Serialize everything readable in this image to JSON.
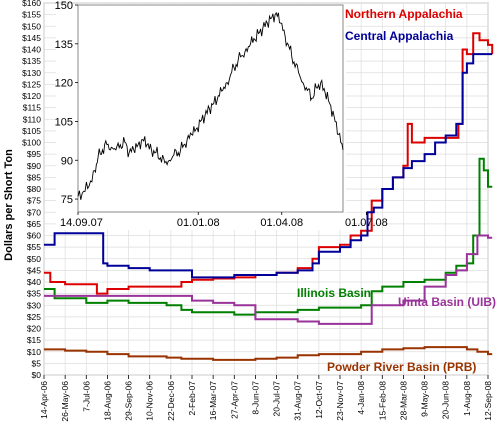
{
  "chart_data": [
    {
      "type": "line",
      "title": "",
      "xlabel": "",
      "ylabel": "Dollars per Short Ton",
      "ylim": [
        0,
        160
      ],
      "yticks": [
        "$0",
        "$5",
        "$10",
        "$15",
        "$20",
        "$25",
        "$30",
        "$35",
        "$40",
        "$45",
        "$50",
        "$55",
        "$60",
        "$65",
        "$70",
        "$75",
        "$80",
        "$85",
        "$90",
        "$95",
        "$100",
        "$105",
        "$110",
        "$115",
        "$120",
        "$125",
        "$130",
        "$135",
        "$140",
        "$145",
        "$150",
        "$155",
        "$160"
      ],
      "xticks": [
        "14-Apr-06",
        "26-May-06",
        "7-Jul-06",
        "18-Aug-06",
        "29-Sep-06",
        "10-Nov-06",
        "22-Dec-06",
        "2-Feb-07",
        "16-Mar-07",
        "27-Apr-07",
        "8-Jun-07",
        "20-Jul-07",
        "31-Aug-07",
        "12-Oct-07",
        "23-Nov-07",
        "4-Jan-08",
        "15-Feb-08",
        "28-Mar-08",
        "9-May-08",
        "20-Jun-08",
        "1-Aug-08",
        "12-Sep-08"
      ],
      "grid": true,
      "legend": "inline labels",
      "series": [
        {
          "name": "Northern Appalachia",
          "color": "#dd0000",
          "points": [
            [
              0,
              44
            ],
            [
              0.3,
              40
            ],
            [
              1,
              39
            ],
            [
              2,
              39
            ],
            [
              2.5,
              35
            ],
            [
              3,
              37
            ],
            [
              4,
              38
            ],
            [
              5,
              38
            ],
            [
              5.8,
              38
            ],
            [
              6.5,
              40
            ],
            [
              7,
              41
            ],
            [
              8,
              41.5
            ],
            [
              9,
              42
            ],
            [
              10,
              43
            ],
            [
              11,
              44
            ],
            [
              12,
              46
            ],
            [
              12.7,
              50
            ],
            [
              13,
              55
            ],
            [
              14,
              56
            ],
            [
              14.5,
              60
            ],
            [
              15,
              62
            ],
            [
              15.5,
              75
            ],
            [
              16,
              80
            ],
            [
              16.5,
              85
            ],
            [
              17,
              90
            ],
            [
              17.2,
              108
            ],
            [
              17.4,
              100
            ],
            [
              18,
              102
            ],
            [
              19,
              102
            ],
            [
              19.6,
              108
            ],
            [
              19.8,
              140
            ],
            [
              20,
              138
            ],
            [
              20.3,
              147
            ],
            [
              20.6,
              144
            ],
            [
              21,
              142
            ],
            [
              21.2,
              138
            ]
          ]
        },
        {
          "name": "Central Appalachia",
          "color": "#000099",
          "points": [
            [
              0,
              56
            ],
            [
              0.5,
              61
            ],
            [
              1,
              61
            ],
            [
              2,
              61
            ],
            [
              2.8,
              48
            ],
            [
              3,
              47
            ],
            [
              4,
              46
            ],
            [
              5,
              45
            ],
            [
              5.8,
              45
            ],
            [
              6.5,
              45
            ],
            [
              7,
              42
            ],
            [
              8,
              42
            ],
            [
              9,
              43
            ],
            [
              10,
              43
            ],
            [
              11,
              44
            ],
            [
              12,
              45
            ],
            [
              12.7,
              48
            ],
            [
              13,
              53
            ],
            [
              14,
              55
            ],
            [
              14.5,
              58
            ],
            [
              15,
              60
            ],
            [
              15.3,
              70
            ],
            [
              15.6,
              72
            ],
            [
              16,
              80
            ],
            [
              16.5,
              85
            ],
            [
              17,
              89
            ],
            [
              17.4,
              92
            ],
            [
              18,
              95
            ],
            [
              18.5,
              100
            ],
            [
              19,
              103
            ],
            [
              19.5,
              108
            ],
            [
              19.8,
              130
            ],
            [
              20,
              134
            ],
            [
              20.3,
              138
            ],
            [
              21,
              138
            ],
            [
              21.2,
              138
            ]
          ]
        },
        {
          "name": "Illinois Basin",
          "color": "#008000",
          "points": [
            [
              0,
              37
            ],
            [
              0.5,
              33
            ],
            [
              1,
              33
            ],
            [
              2,
              31
            ],
            [
              3,
              32
            ],
            [
              4,
              31
            ],
            [
              5,
              31
            ],
            [
              5.8,
              30
            ],
            [
              6.5,
              28
            ],
            [
              7,
              27
            ],
            [
              8,
              27
            ],
            [
              9,
              26
            ],
            [
              10,
              27
            ],
            [
              11,
              27
            ],
            [
              12,
              28
            ],
            [
              13,
              29
            ],
            [
              14,
              29
            ],
            [
              15,
              30
            ],
            [
              15.5,
              36
            ],
            [
              16,
              38
            ],
            [
              17,
              40
            ],
            [
              18,
              41
            ],
            [
              19,
              44
            ],
            [
              19.5,
              47
            ],
            [
              20,
              48
            ],
            [
              20.3,
              60
            ],
            [
              20.6,
              93
            ],
            [
              20.8,
              88
            ],
            [
              21,
              81
            ],
            [
              21.2,
              81
            ]
          ]
        },
        {
          "name": "Uinta Basin (UIB)",
          "color": "#993399",
          "points": [
            [
              0,
              34
            ],
            [
              1,
              34
            ],
            [
              2,
              34
            ],
            [
              3,
              34
            ],
            [
              4,
              34
            ],
            [
              5,
              34
            ],
            [
              5.8,
              34
            ],
            [
              6.5,
              34
            ],
            [
              7,
              32
            ],
            [
              8,
              31
            ],
            [
              9,
              30
            ],
            [
              9.8,
              30
            ],
            [
              10,
              24
            ],
            [
              11,
              24
            ],
            [
              12,
              23
            ],
            [
              13,
              22
            ],
            [
              14,
              22
            ],
            [
              15,
              22
            ],
            [
              15.5,
              30
            ],
            [
              16,
              30
            ],
            [
              17,
              32
            ],
            [
              18,
              38
            ],
            [
              19,
              43
            ],
            [
              19.5,
              45
            ],
            [
              20,
              52
            ],
            [
              20.5,
              60
            ],
            [
              21,
              59
            ],
            [
              21.2,
              59
            ]
          ]
        },
        {
          "name": "Powder River Basin (PRB)",
          "color": "#993300",
          "points": [
            [
              0,
              11
            ],
            [
              1,
              10.5
            ],
            [
              2,
              10
            ],
            [
              3,
              9
            ],
            [
              4,
              8
            ],
            [
              5,
              8
            ],
            [
              5.8,
              7.5
            ],
            [
              6.5,
              7
            ],
            [
              7,
              7
            ],
            [
              8,
              6.5
            ],
            [
              9,
              6.5
            ],
            [
              10,
              7
            ],
            [
              11,
              7.5
            ],
            [
              12,
              8.5
            ],
            [
              13,
              9
            ],
            [
              14,
              9
            ],
            [
              15,
              10
            ],
            [
              16,
              11
            ],
            [
              17,
              11.5
            ],
            [
              18,
              12
            ],
            [
              19,
              12
            ],
            [
              20,
              11
            ],
            [
              20.5,
              10
            ],
            [
              21,
              9
            ],
            [
              21.2,
              9
            ]
          ]
        }
      ]
    },
    {
      "type": "line",
      "title": "",
      "ylim": [
        70,
        150
      ],
      "yticks": [
        "75",
        "90",
        "105",
        "120",
        "135",
        "150"
      ],
      "xticks": [
        "14.09.07",
        "01.01.08",
        "01.04.08",
        "01.07.08"
      ],
      "grid": false,
      "series": [
        {
          "name": "",
          "color": "#000000",
          "points": [
            [
              0,
              76
            ],
            [
              5,
              78
            ],
            [
              10,
              80
            ],
            [
              15,
              86
            ],
            [
              18,
              91
            ],
            [
              22,
              94
            ],
            [
              26,
              96
            ],
            [
              30,
              95
            ],
            [
              34,
              94
            ],
            [
              38,
              96
            ],
            [
              42,
              97
            ],
            [
              46,
              93
            ],
            [
              50,
              94
            ],
            [
              54,
              96
            ],
            [
              58,
              98
            ],
            [
              62,
              96
            ],
            [
              66,
              94
            ],
            [
              70,
              93
            ],
            [
              74,
              91
            ],
            [
              78,
              89
            ],
            [
              82,
              90
            ],
            [
              86,
              92
            ],
            [
              90,
              93
            ],
            [
              94,
              95
            ],
            [
              98,
              98
            ],
            [
              102,
              100
            ],
            [
              106,
              102
            ],
            [
              110,
              105
            ],
            [
              114,
              107
            ],
            [
              118,
              110
            ],
            [
              122,
              112
            ],
            [
              126,
              115
            ],
            [
              130,
              117
            ],
            [
              134,
              120
            ],
            [
              138,
              124
            ],
            [
              142,
              127
            ],
            [
              146,
              130
            ],
            [
              150,
              132
            ],
            [
              154,
              134
            ],
            [
              158,
              137
            ],
            [
              162,
              139
            ],
            [
              166,
              141
            ],
            [
              170,
              143
            ],
            [
              174,
              145
            ],
            [
              178,
              147
            ],
            [
              182,
              143
            ],
            [
              186,
              138
            ],
            [
              190,
              133
            ],
            [
              194,
              128
            ],
            [
              198,
              124
            ],
            [
              202,
              120
            ],
            [
              206,
              117
            ],
            [
              210,
              114
            ],
            [
              214,
              118
            ],
            [
              218,
              120
            ],
            [
              222,
              116
            ],
            [
              226,
              112
            ],
            [
              230,
              107
            ],
            [
              234,
              100
            ],
            [
              238,
              94
            ]
          ]
        }
      ]
    }
  ]
}
